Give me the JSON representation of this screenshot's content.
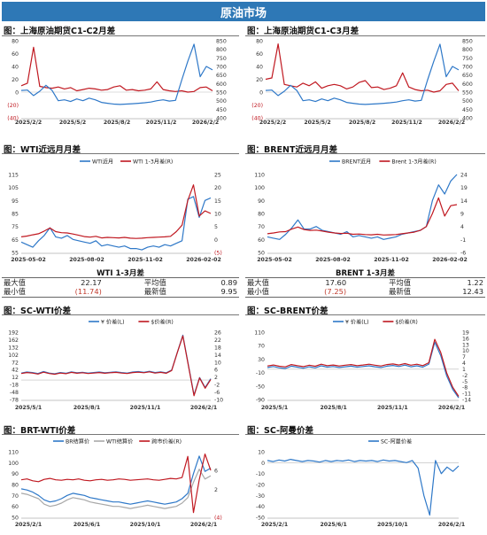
{
  "header": {
    "title": "原油市场"
  },
  "panels": [
    {
      "id": "p1",
      "title": "图：上海原油期货C1-C2月差"
    },
    {
      "id": "p2",
      "title": "图：上海原油期货C1-C3月差"
    },
    {
      "id": "p3",
      "title": "图：WTI近远月月差"
    },
    {
      "id": "p4",
      "title": "图：BRENT近远月月差"
    },
    {
      "id": "p5",
      "title": "图：SC-WTI价差"
    },
    {
      "id": "p6",
      "title": "图：SC-BRENT价差"
    },
    {
      "id": "p7",
      "title": "图：BRT-WTI价差"
    },
    {
      "id": "p8",
      "title": "图：SC-阿曼价差"
    }
  ],
  "stats": [
    {
      "title": "WTI 1-3月差",
      "rows": [
        {
          "l1": "最大值",
          "v1": "22.17",
          "l2": "平均值",
          "v2": "0.89"
        },
        {
          "l1": "最小值",
          "v1": "(11.74)",
          "l2": "最新值",
          "v2": "9.95"
        }
      ]
    },
    {
      "title": "BRENT 1-3月差",
      "rows": [
        {
          "l1": "最大值",
          "v1": "17.60",
          "l2": "平均值",
          "v2": "1.22"
        },
        {
          "l1": "最小值",
          "v1": "(7.25)",
          "l2": "最新值",
          "v2": "12.43"
        }
      ]
    }
  ],
  "colors": {
    "blue": "#2e78c8",
    "red": "#c01820",
    "gray": "#a8a8a8",
    "banner": "#2e78b6"
  },
  "chart_data": [
    {
      "id": "p1",
      "type": "line",
      "x_labels": [
        "2025/2/2",
        "2025/5/2",
        "2025/8/2",
        "2025/11/2",
        "2026/2/2"
      ],
      "yleft": {
        "ticks": [
          "80",
          "60",
          "40",
          "20",
          "0",
          "(20)",
          "(40)"
        ],
        "min": -40,
        "max": 80
      },
      "yright": {
        "ticks": [
          "850",
          "800",
          "750",
          "700",
          "650",
          "600",
          "550",
          "500",
          "450",
          "400"
        ],
        "min": 400,
        "max": 850
      },
      "series": [
        {
          "axis": "left",
          "color": "#c01820",
          "values": [
            10,
            14,
            70,
            9,
            7,
            6,
            8,
            5,
            7,
            2,
            4,
            6,
            5,
            3,
            4,
            8,
            10,
            3,
            4,
            2,
            3,
            5,
            16,
            4,
            2,
            1,
            2,
            0,
            1,
            7,
            8,
            2
          ]
        },
        {
          "axis": "right",
          "color": "#2e78c8",
          "values": [
            560,
            562,
            530,
            555,
            590,
            560,
            500,
            505,
            495,
            510,
            500,
            515,
            505,
            490,
            485,
            480,
            478,
            480,
            482,
            485,
            488,
            492,
            500,
            505,
            498,
            502,
            620,
            730,
            830,
            640,
            700,
            680
          ]
        }
      ]
    },
    {
      "id": "p2",
      "type": "line",
      "x_labels": [
        "2025/2/2",
        "2025/5/2",
        "2025/8/2",
        "2025/11/2",
        "2026/2/2"
      ],
      "yleft": {
        "ticks": [
          "80",
          "60",
          "40",
          "20",
          "0",
          "(20)",
          "(40)"
        ],
        "min": -40,
        "max": 80
      },
      "yright": {
        "ticks": [
          "850",
          "800",
          "750",
          "700",
          "650",
          "600",
          "550",
          "500",
          "450",
          "400"
        ],
        "min": 400,
        "max": 850
      },
      "series": [
        {
          "axis": "left",
          "color": "#c01820",
          "values": [
            20,
            22,
            75,
            12,
            10,
            8,
            14,
            10,
            16,
            6,
            10,
            12,
            10,
            5,
            8,
            15,
            18,
            7,
            8,
            4,
            6,
            10,
            30,
            8,
            4,
            2,
            3,
            0,
            2,
            12,
            14,
            2
          ]
        },
        {
          "axis": "right",
          "color": "#2e78c8",
          "values": [
            560,
            562,
            530,
            555,
            590,
            560,
            500,
            505,
            495,
            510,
            500,
            515,
            505,
            490,
            485,
            480,
            478,
            480,
            482,
            485,
            488,
            492,
            500,
            505,
            498,
            502,
            620,
            730,
            830,
            640,
            700,
            680
          ]
        }
      ]
    },
    {
      "id": "p3",
      "type": "line",
      "x_labels": [
        "2025-05-02",
        "2025-08-02",
        "2025-11-02",
        "2026-02-02"
      ],
      "legend": [
        "WTI近月",
        "WTI 1-3月差(R)"
      ],
      "yleft": {
        "ticks": [
          "115",
          "105",
          "95",
          "85",
          "75",
          "65",
          "55"
        ],
        "min": 55,
        "max": 115
      },
      "yright": {
        "ticks": [
          "25",
          "20",
          "15",
          "10",
          "5",
          "0",
          "(5)"
        ],
        "min": -5,
        "max": 25
      },
      "series": [
        {
          "name": "WTI近月",
          "axis": "left",
          "color": "#2e78c8",
          "values": [
            63,
            61,
            59,
            64,
            68,
            74,
            67,
            66,
            68,
            65,
            64,
            63,
            62,
            64,
            60,
            61,
            60,
            59,
            60,
            58,
            58,
            57,
            59,
            60,
            59,
            61,
            60,
            62,
            64,
            96,
            98,
            82,
            95,
            97
          ]
        },
        {
          "name": "WTI 1-3月差(R)",
          "axis": "right",
          "color": "#c01820",
          "values": [
            1.0,
            1.3,
            1.8,
            2.2,
            3.2,
            4.4,
            3.0,
            2.6,
            2.5,
            2.1,
            1.6,
            1.1,
            0.9,
            1.2,
            0.6,
            0.8,
            0.7,
            0.6,
            0.8,
            0.5,
            0.4,
            0.5,
            0.7,
            0.8,
            0.9,
            1.0,
            1.2,
            3.0,
            5.5,
            15.0,
            21.0,
            9.0,
            11.0,
            10.0
          ]
        }
      ]
    },
    {
      "id": "p4",
      "type": "line",
      "x_labels": [
        "2025-05-02",
        "2025-08-02",
        "2025-11-02",
        "2026-02-02"
      ],
      "legend": [
        "BRENT近月",
        "Brent 1-3月差(R)"
      ],
      "yleft": {
        "ticks": [
          "110",
          "100",
          "90",
          "80",
          "70",
          "60",
          "50"
        ],
        "min": 50,
        "max": 110
      },
      "yright": {
        "ticks": [
          "24",
          "19",
          "14",
          "9",
          "4",
          "-1",
          "-6"
        ],
        "min": -6,
        "max": 24
      },
      "series": [
        {
          "name": "BRENT近月",
          "axis": "left",
          "color": "#2e78c8",
          "values": [
            62,
            61,
            60,
            64,
            69,
            75,
            68,
            68,
            70,
            67,
            66,
            65,
            64,
            66,
            62,
            63,
            62,
            61,
            62,
            60,
            61,
            62,
            64,
            65,
            66,
            67,
            70,
            90,
            102,
            95,
            105,
            110
          ]
        },
        {
          "name": "Brent 1-3月差(R)",
          "axis": "right",
          "color": "#c01820",
          "values": [
            1.2,
            1.5,
            1.9,
            2.0,
            3.0,
            3.8,
            2.8,
            2.5,
            2.6,
            2.2,
            1.8,
            1.5,
            1.3,
            1.4,
            1.0,
            1.1,
            0.9,
            0.8,
            1.0,
            0.7,
            0.8,
            0.9,
            1.2,
            1.5,
            1.8,
            2.5,
            4.0,
            9.0,
            15.0,
            8.0,
            12.0,
            12.4
          ]
        }
      ]
    },
    {
      "id": "p5",
      "type": "line",
      "x_labels": [
        "2025/5/1",
        "2025/8/1",
        "2025/11/1",
        "2026/2/1"
      ],
      "legend": [
        "¥ 价差(L)",
        "$价差(R)"
      ],
      "yleft": {
        "ticks": [
          "192",
          "162",
          "132",
          "102",
          "72",
          "42",
          "12",
          "-18",
          "-48",
          "-78"
        ],
        "min": -78,
        "max": 192
      },
      "yright": {
        "ticks": [
          "26",
          "22",
          "18",
          "14",
          "10",
          "6",
          "2",
          "-2",
          "-6",
          "-10"
        ],
        "min": -10,
        "max": 26
      },
      "series": [
        {
          "name": "¥ 价差(L)",
          "axis": "left",
          "color": "#2e78c8",
          "values": [
            28,
            32,
            30,
            26,
            34,
            28,
            25,
            30,
            27,
            33,
            29,
            31,
            28,
            30,
            32,
            29,
            31,
            33,
            30,
            28,
            32,
            34,
            31,
            35,
            30,
            33,
            29,
            40,
            110,
            180,
            60,
            -60,
            10,
            -30,
            5
          ]
        },
        {
          "name": "$价差(R)",
          "axis": "right",
          "color": "#c01820",
          "values": [
            3.9,
            4.4,
            4.1,
            3.6,
            4.6,
            3.9,
            3.5,
            4.1,
            3.8,
            4.5,
            4.0,
            4.3,
            3.9,
            4.1,
            4.4,
            4.0,
            4.3,
            4.5,
            4.1,
            3.9,
            4.4,
            4.6,
            4.3,
            4.8,
            4.1,
            4.5,
            4.0,
            5.5,
            15.0,
            24.0,
            8.0,
            -8.0,
            1.5,
            -4.0,
            0.7
          ]
        }
      ]
    },
    {
      "id": "p6",
      "type": "line",
      "x_labels": [
        "2025/5/1",
        "2025/8/1",
        "2025/11/1",
        "2026/2/1"
      ],
      "legend": [
        "¥ 价差(L)",
        "$价差(R)"
      ],
      "yleft": {
        "ticks": [
          "110",
          "70",
          "30",
          "-10",
          "-50",
          "-90"
        ],
        "min": -90,
        "max": 110
      },
      "yright": {
        "ticks": [
          "19",
          "16",
          "13",
          "10",
          "7",
          "4",
          "1",
          "-2",
          "-5",
          "-8",
          "-11",
          "-14"
        ],
        "min": -14,
        "max": 19
      },
      "series": [
        {
          "name": "¥ 价差(L)",
          "axis": "left",
          "color": "#2e78c8",
          "values": [
            5,
            8,
            4,
            2,
            9,
            6,
            3,
            7,
            4,
            10,
            6,
            8,
            5,
            7,
            9,
            6,
            8,
            10,
            7,
            5,
            9,
            11,
            8,
            12,
            7,
            10,
            6,
            15,
            80,
            40,
            -20,
            -60,
            -85
          ]
        },
        {
          "name": "$价差(R)",
          "axis": "right",
          "color": "#c01820",
          "values": [
            2.4,
            2.9,
            2.3,
            2.0,
            3.1,
            2.6,
            2.1,
            2.8,
            2.3,
            3.3,
            2.6,
            2.9,
            2.4,
            2.8,
            3.1,
            2.6,
            2.9,
            3.3,
            2.8,
            2.4,
            3.1,
            3.4,
            2.9,
            3.6,
            2.8,
            3.3,
            2.6,
            4.0,
            15.5,
            9.0,
            -1.0,
            -8.0,
            -12.5
          ]
        }
      ]
    },
    {
      "id": "p7",
      "type": "line",
      "x_labels": [
        "2025/2/1",
        "2025/6/1",
        "2025/10/1",
        "2026/2/1"
      ],
      "legend": [
        "BR结算价",
        "WTI结算价",
        "跨市价差(R)"
      ],
      "yleft": {
        "ticks": [
          "110",
          "100",
          "90",
          "80",
          "70",
          "60",
          "50"
        ],
        "min": 50,
        "max": 110
      },
      "yright": {
        "ticks": [
          "6",
          "2",
          "(4)"
        ],
        "min": -4,
        "max": 10
      },
      "series": [
        {
          "name": "BR结算价",
          "axis": "left",
          "color": "#2e78c8",
          "values": [
            76,
            75,
            73,
            70,
            66,
            64,
            65,
            67,
            70,
            72,
            71,
            70,
            68,
            67,
            66,
            65,
            64,
            64,
            63,
            62,
            63,
            64,
            65,
            64,
            63,
            62,
            63,
            64,
            67,
            72,
            90,
            106,
            92,
            95
          ]
        },
        {
          "name": "WTI结算价",
          "axis": "left",
          "color": "#a8a8a8",
          "values": [
            72,
            71,
            69,
            67,
            62,
            60,
            61,
            63,
            66,
            68,
            67,
            66,
            64,
            63,
            62,
            61,
            60,
            60,
            59,
            58,
            59,
            60,
            61,
            60,
            59,
            58,
            59,
            60,
            63,
            68,
            82,
            94,
            85,
            88
          ]
        },
        {
          "name": "跨市价差(R)",
          "axis": "right",
          "color": "#c01820",
          "values": [
            4.0,
            4.2,
            3.8,
            3.6,
            4.1,
            4.3,
            4.0,
            3.9,
            4.1,
            4.0,
            4.2,
            3.9,
            3.8,
            4.0,
            4.1,
            3.9,
            4.0,
            4.2,
            4.1,
            3.9,
            4.0,
            4.1,
            4.2,
            4.0,
            3.9,
            4.1,
            4.3,
            4.2,
            4.5,
            9.0,
            -3.0,
            4.0,
            9.5,
            6.0
          ]
        }
      ]
    },
    {
      "id": "p8",
      "type": "line",
      "x_labels": [
        "2025/2/1",
        "2025/6/1",
        "2025/10/1",
        "2026/2/1"
      ],
      "legend": [
        "SC-阿曼价差"
      ],
      "yleft": {
        "ticks": [
          "10",
          "0",
          "-10",
          "-20",
          "-30",
          "-40",
          "-50"
        ],
        "min": -50,
        "max": 10
      },
      "series": [
        {
          "name": "SC-阿曼价差",
          "axis": "left",
          "color": "#2e78c8",
          "values": [
            2,
            1,
            2.5,
            1.5,
            3,
            2,
            1,
            2,
            1.5,
            0.5,
            2,
            1,
            2,
            1.5,
            2.5,
            1,
            2,
            1.5,
            2,
            1,
            2.5,
            1.5,
            2,
            1,
            0,
            2,
            -5,
            -30,
            -48,
            2,
            -10,
            -4,
            -8,
            -3
          ]
        }
      ]
    }
  ]
}
